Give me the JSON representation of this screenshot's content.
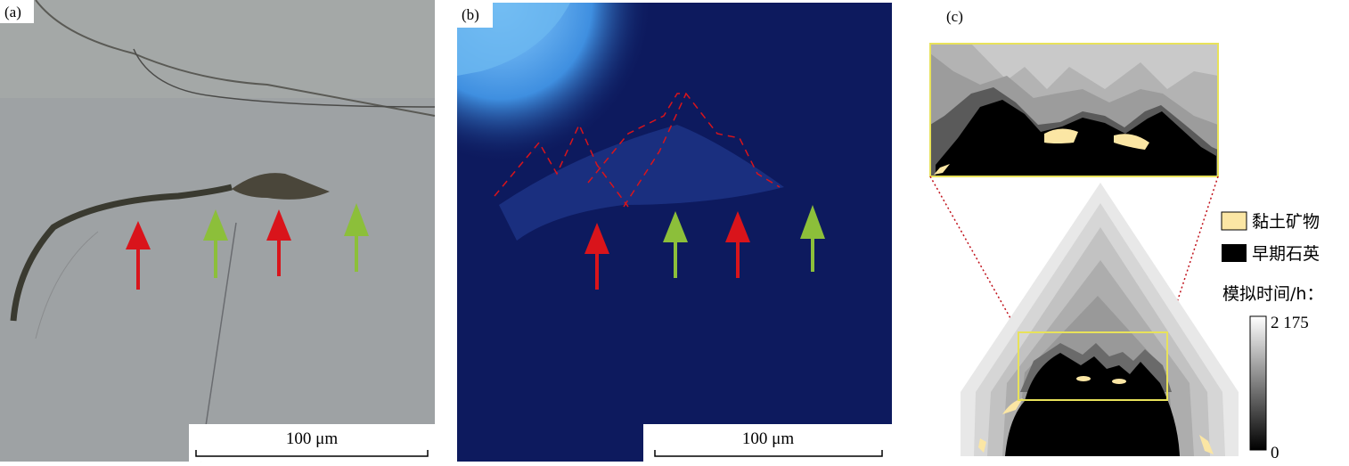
{
  "panels": [
    {
      "label": "(a)",
      "scale_bar": "100 μm"
    },
    {
      "label": "(b)",
      "scale_bar": "100 μm"
    },
    {
      "label": "(c)",
      "legend": [
        {
          "label": "黏土矿物"
        },
        {
          "label": "早期石英"
        }
      ],
      "colorbar": {
        "title": "模拟时间/h：",
        "max": "2 175",
        "min": "0"
      }
    }
  ]
}
